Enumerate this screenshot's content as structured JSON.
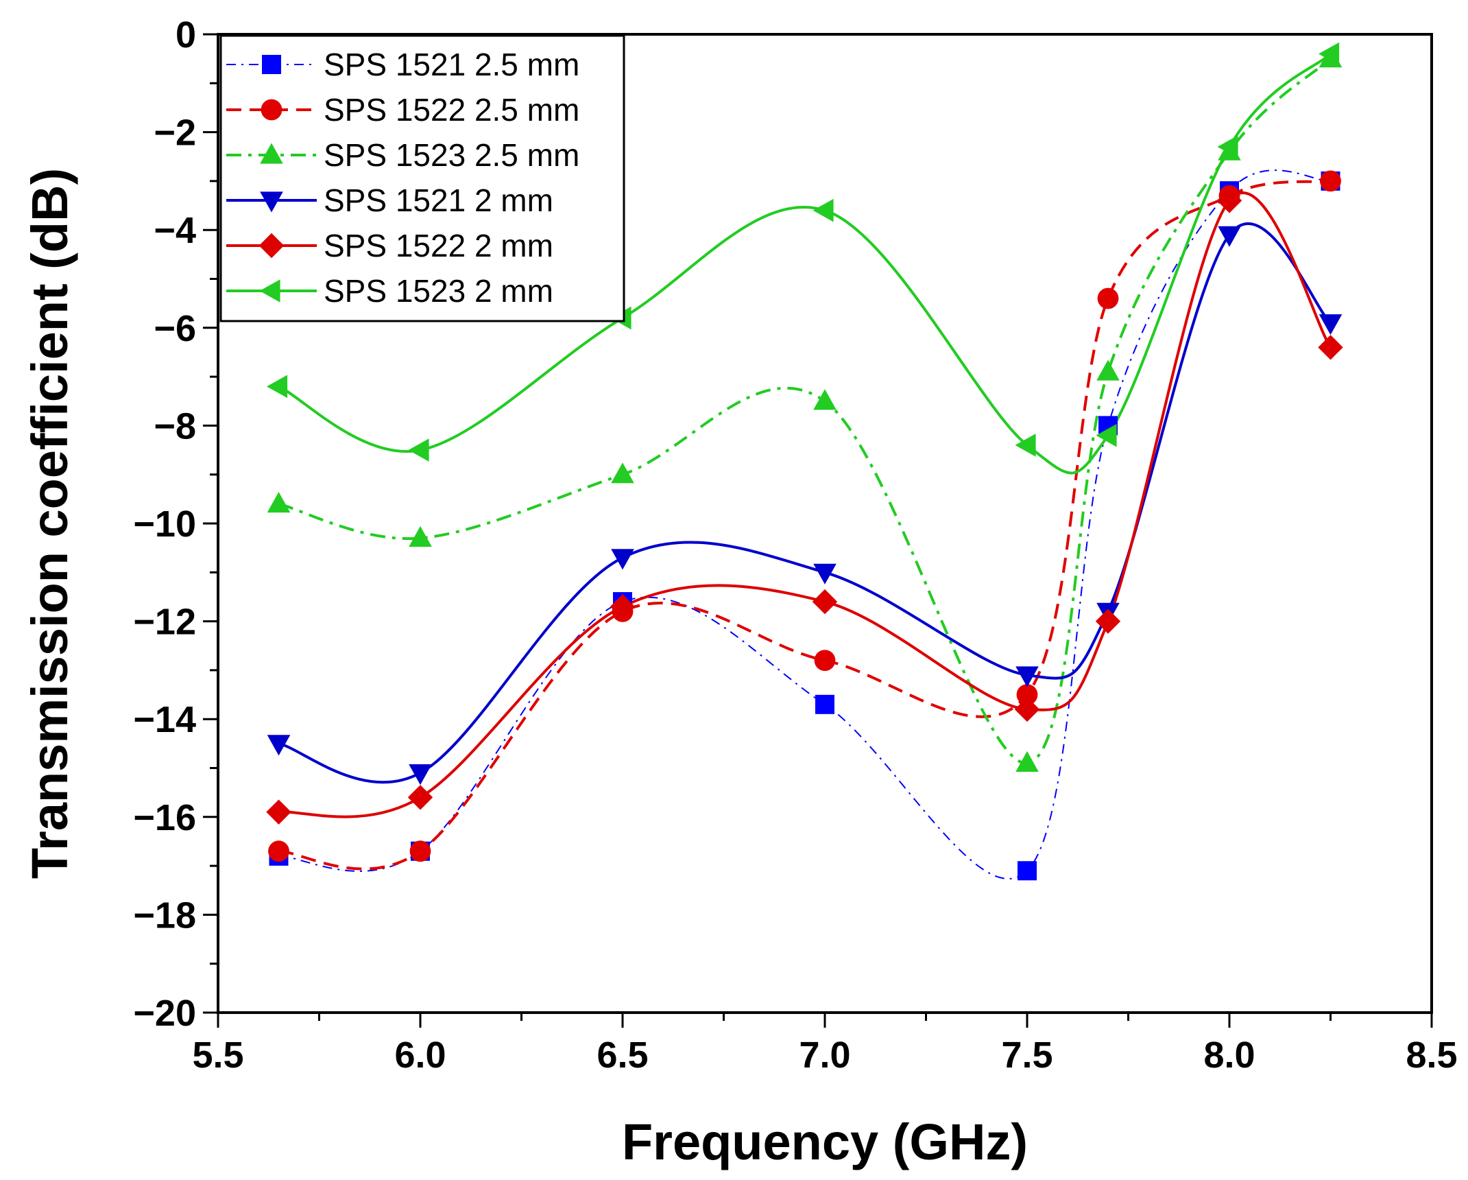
{
  "chart_data": {
    "type": "line",
    "title": "",
    "xlabel": "Frequency (GHz)",
    "ylabel": "Transmission coefficient (dB)",
    "xlim": [
      5.5,
      8.5
    ],
    "ylim": [
      -20,
      0
    ],
    "xticks": [
      5.5,
      6.0,
      6.5,
      7.0,
      7.5,
      8.0,
      8.5
    ],
    "xtick_labels": [
      "5.5",
      "6.0",
      "6.5",
      "7.0",
      "7.5",
      "8.0",
      "8.5"
    ],
    "yticks": [
      0,
      -2,
      -4,
      -6,
      -8,
      -10,
      -12,
      -14,
      -16,
      -18,
      -20
    ],
    "ytick_labels": [
      "0",
      "−2",
      "−4",
      "−6",
      "−8",
      "−10",
      "−12",
      "−14",
      "−16",
      "−18",
      "−20"
    ],
    "grid": false,
    "legend_position": "top-left",
    "x": [
      5.65,
      6.0,
      6.5,
      7.0,
      7.5,
      7.7,
      8.0,
      8.25
    ],
    "series": [
      {
        "name": "SPS 1521 2.5 mm",
        "color": "#0000ff",
        "marker": "square",
        "dash": "dashdot-thin",
        "values": [
          -16.8,
          -16.7,
          -11.6,
          -13.7,
          -17.1,
          -8.0,
          -3.2,
          -3.0
        ]
      },
      {
        "name": "SPS 1522 2.5 mm",
        "color": "#e00000",
        "marker": "circle",
        "dash": "dash",
        "values": [
          -16.7,
          -16.7,
          -11.8,
          -12.8,
          -13.5,
          -5.4,
          -3.3,
          -3.0
        ]
      },
      {
        "name": "SPS 1523 2.5 mm",
        "color": "#22cc22",
        "marker": "triangle-up",
        "dash": "dashdot",
        "values": [
          -9.6,
          -10.3,
          -9.0,
          -7.5,
          -14.9,
          -6.9,
          -2.4,
          -0.5
        ]
      },
      {
        "name": "SPS 1521 2 mm",
        "color": "#0000cc",
        "marker": "triangle-down",
        "dash": "solid",
        "values": [
          -14.5,
          -15.1,
          -10.7,
          -11.0,
          -13.1,
          -11.8,
          -4.1,
          -5.9
        ]
      },
      {
        "name": "SPS 1522 2 mm",
        "color": "#dd0000",
        "marker": "diamond",
        "dash": "solid",
        "values": [
          -15.9,
          -15.6,
          -11.7,
          -11.6,
          -13.8,
          -12.0,
          -3.4,
          -6.4
        ]
      },
      {
        "name": "SPS 1523 2 mm",
        "color": "#22cc22",
        "marker": "triangle-left",
        "dash": "solid",
        "values": [
          -7.2,
          -8.5,
          -5.8,
          -3.6,
          -8.4,
          -8.2,
          -2.3,
          -0.4
        ]
      }
    ]
  }
}
